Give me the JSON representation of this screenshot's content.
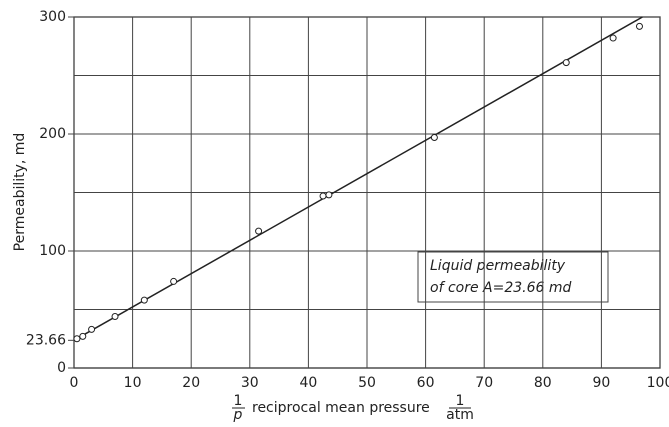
{
  "chart_data": {
    "type": "scatter",
    "xlabel": {
      "num": "1",
      "den": "p",
      "text": "reciprocal mean pressure",
      "unit_num": "1",
      "unit_den": "atm"
    },
    "ylabel": "Permeability, md",
    "annotation": [
      "Liquid permeability",
      "of core A=23.66 md"
    ],
    "x": [
      0.5,
      1.5,
      3,
      7,
      12,
      17,
      31.5,
      42.5,
      43.5,
      61.5,
      84,
      92,
      96.5
    ],
    "values": [
      25,
      27,
      33,
      44,
      58,
      74,
      117,
      147,
      148,
      197,
      261,
      282,
      292
    ],
    "line": {
      "x": [
        0,
        97
      ],
      "y": [
        23.66,
        300
      ]
    },
    "xlim": [
      0,
      100
    ],
    "ylim": [
      0,
      300
    ],
    "xticks": [
      0,
      10,
      20,
      30,
      40,
      50,
      60,
      70,
      80,
      90,
      100
    ],
    "yticks": [
      0,
      23.66,
      100,
      200,
      300
    ],
    "ygrid": [
      50,
      100,
      150,
      200,
      250,
      300
    ],
    "grid": true,
    "color": "#222"
  }
}
